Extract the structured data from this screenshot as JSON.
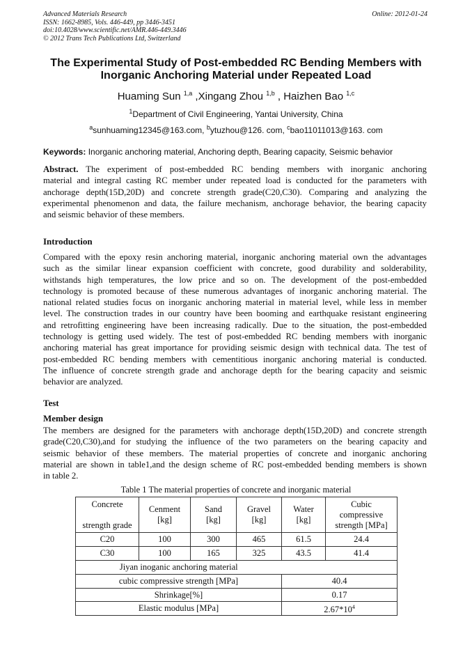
{
  "header": {
    "journal": "Advanced Materials Research",
    "issn": "ISSN: 1662-8985, Vols. 446-449, pp 3446-3451",
    "doi": "doi:10.4028/www.scientific.net/AMR.446-449.3446",
    "copyright": "© 2012 Trans Tech Publications Ltd, Switzerland",
    "online": "Online: 2012-01-24"
  },
  "title": [
    "The Experimental Study of Post-embedded RC Bending Members  with",
    "Inorganic Anchoring Material under Repeated Load"
  ],
  "authors": [
    {
      "name": "Huaming Sun",
      "sup": "1,a"
    },
    {
      "name": "Xingang Zhou",
      "sup": "1,b"
    },
    {
      "name": "Haizhen Bao",
      "sup": "1,c"
    }
  ],
  "affiliation": {
    "sup": "1",
    "text": "Department of Civil Engineering, Yantai University, China"
  },
  "emails": [
    {
      "sup": "a",
      "text": "sunhuaming12345@163.com,"
    },
    {
      "sup": "b",
      "text": "ytuzhou@126. com,"
    },
    {
      "sup": "c",
      "text": "bao11011013@163. com"
    }
  ],
  "keywords": {
    "label": "Keywords:",
    "text": "Inorganic anchoring material, Anchoring depth, Bearing capacity, Seismic behavior"
  },
  "abstract": {
    "label": "Abstract.",
    "lines": [
      "The experiment of post-embedded RC bending members with inorganic anchoring",
      "material and integral casting RC member under repeated load is conducted for the parameters with",
      "anchorage depth(15D,20D) and concrete strength grade(C20,C30). Comparing and analyzing the",
      "experimental phenomenon and data, the failure mechanism, anchorage behavior, the bearing capacity",
      "and seismic behavior of these members."
    ]
  },
  "introduction": {
    "heading": "Introduction",
    "lines": [
      "Compared with the epoxy resin anchoring material, inorganic anchoring material own the advantages",
      "such as the similar linear expansion coefficient with concrete, good durability and solderability,",
      "withstands high temperatures, the low price and so on. The development of the post-embedded",
      "technology is promoted because of these numerous advantages of inorganic anchoring material. The",
      "national related studies focus on inorganic anchoring material in material level, while less in member",
      "level. The construction trades in our country have been booming and earthquake resistant engineering",
      "and retrofitting engineering have been increasing radically. Due to the situation, the post-embedded",
      "technology is getting used widely. The test of post-embedded RC bending members with inorganic",
      "anchoring material has great importance for providing seismic design with technical data. The test of",
      "post-embedded RC bending members with cementitious inorganic anchoring material is conducted.",
      "The influence of concrete strength grade and anchorage depth for the bearing capacity and seismic",
      "behavior are analyzed."
    ]
  },
  "test": {
    "heading": "Test",
    "subheading": "Member design",
    "lines": [
      "The members are designed for the parameters with anchorage depth(15D,20D) and concrete strength",
      "grade(C20,C30),and for studying the influence of the two parameters on the bearing capacity and",
      "seismic behavior of these members. The material properties of concrete and inorganic anchoring",
      "material are shown in table1,and the design scheme of RC post-embedded bending members is shown",
      "in table 2."
    ]
  },
  "table1": {
    "caption": "Table 1 The material properties of concrete and inorganic material",
    "headers": [
      [
        "Concrete",
        "strength grade"
      ],
      [
        "Cenment",
        "[kg]"
      ],
      [
        "Sand",
        "[kg]"
      ],
      [
        "Gravel",
        "[kg]"
      ],
      [
        "Water",
        "[kg]"
      ],
      [
        "Cubic",
        "compressive",
        "strength [MPa]"
      ]
    ],
    "rows": [
      [
        "C20",
        "100",
        "300",
        "465",
        "61.5",
        "24.4"
      ],
      [
        "C30",
        "100",
        "165",
        "325",
        "43.5",
        "41.4"
      ]
    ],
    "section": "Jiyan inoganic anchoring material",
    "props": [
      {
        "label": "cubic compressive strength  [MPa]",
        "value": "40.4"
      },
      {
        "label": "Shrinkage[%]",
        "value": "0.17"
      },
      {
        "label": "Elastic modulus  [MPa]",
        "value": "2.67*10",
        "sup": "4"
      }
    ]
  }
}
